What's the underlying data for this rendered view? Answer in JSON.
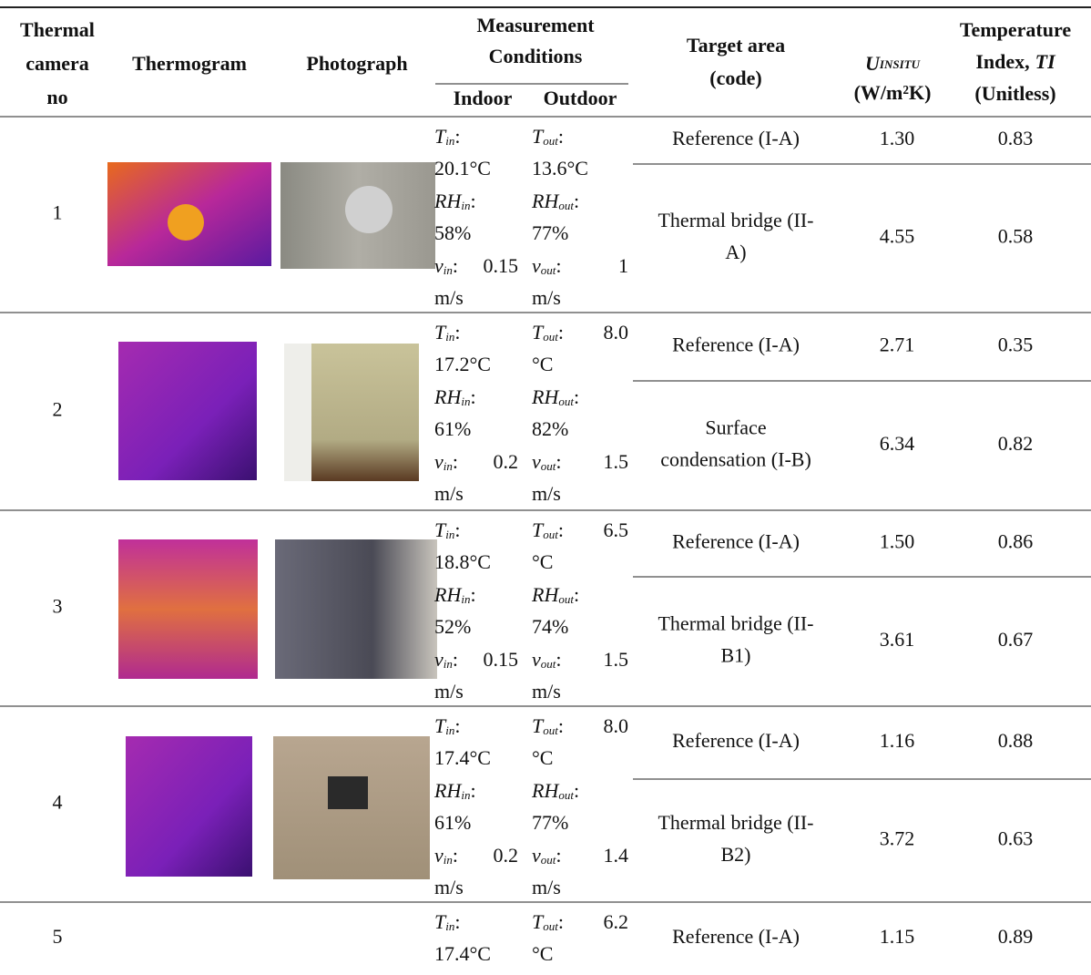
{
  "table": {
    "header": {
      "camera": [
        "Thermal",
        "camera",
        "no"
      ],
      "thermogram": "Thermogram",
      "photograph": "Photograph",
      "conditions": [
        "Measurement",
        "Conditions"
      ],
      "indoor": "Indoor",
      "outdoor": "Outdoor",
      "target": [
        "Target area",
        "(code)"
      ],
      "u": {
        "symbol": "U",
        "sub": "INSITU",
        "unit": "(W/m²K)"
      },
      "ti": {
        "line1": "Temperature",
        "line2": "Index,",
        "em": "TI",
        "line3": "(Unitless)"
      }
    },
    "rows": [
      {
        "no": "1",
        "indoor": [
          {
            "symbol": "T",
            "sub": "in",
            "punct": ":",
            "next": "20.1°C"
          },
          {
            "symbol": "RH",
            "sub": "in",
            "punct": ":",
            "next": "58%"
          },
          {
            "symbol": "v",
            "sub": "in",
            "punct": ":",
            "tail": "0.15",
            "next": "m/s"
          }
        ],
        "outdoor": [
          {
            "symbol": "T",
            "sub": "out",
            "punct": ":",
            "next": "13.6°C"
          },
          {
            "symbol": "RH",
            "sub": "out",
            "punct": ":",
            "next": "77%"
          },
          {
            "symbol": "v",
            "sub": "out",
            "punct": ":",
            "tail": "1",
            "next": "m/s"
          }
        ],
        "areas": [
          {
            "target": [
              "Reference (I-A)"
            ],
            "u": "1.30",
            "ti": "0.83"
          },
          {
            "target": [
              "Thermal bridge (II-",
              "A)"
            ],
            "u": "4.55",
            "ti": "0.58"
          }
        ]
      },
      {
        "no": "2",
        "indoor": [
          {
            "symbol": "T",
            "sub": "in",
            "punct": ":",
            "next": "17.2°C"
          },
          {
            "symbol": "RH",
            "sub": "in",
            "punct": ":",
            "next": "61%"
          },
          {
            "symbol": "v",
            "sub": "in",
            "punct": ":",
            "tail": "0.2",
            "next": "m/s"
          }
        ],
        "outdoor": [
          {
            "symbol": "T",
            "sub": "out",
            "punct": ":",
            "tail": "8.0",
            "next": "°C"
          },
          {
            "symbol": "RH",
            "sub": "out",
            "punct": ":",
            "next": "82%"
          },
          {
            "symbol": "v",
            "sub": "out",
            "punct": ":",
            "tail": "1.5",
            "next": "m/s"
          }
        ],
        "areas": [
          {
            "target": [
              "Reference (I-A)"
            ],
            "u": "2.71",
            "ti": "0.35"
          },
          {
            "target": [
              "Surface",
              "condensation (I-B)"
            ],
            "u": "6.34",
            "ti": "0.82"
          }
        ]
      },
      {
        "no": "3",
        "indoor": [
          {
            "symbol": "T",
            "sub": "in",
            "punct": ":",
            "next": "18.8°C"
          },
          {
            "symbol": "RH",
            "sub": "in",
            "punct": ":",
            "next": "52%"
          },
          {
            "symbol": "v",
            "sub": "in",
            "punct": ":",
            "tail": "0.15",
            "next": "m/s"
          }
        ],
        "outdoor": [
          {
            "symbol": "T",
            "sub": "out",
            "punct": ":",
            "tail": "6.5",
            "next": "°C"
          },
          {
            "symbol": "RH",
            "sub": "out",
            "punct": ":",
            "next": "74%"
          },
          {
            "symbol": "v",
            "sub": "out",
            "punct": ":",
            "tail": "1.5",
            "next": "m/s"
          }
        ],
        "areas": [
          {
            "target": [
              "Reference (I-A)"
            ],
            "u": "1.50",
            "ti": "0.86"
          },
          {
            "target": [
              "Thermal bridge (II-",
              "B1)"
            ],
            "u": "3.61",
            "ti": "0.67"
          }
        ]
      },
      {
        "no": "4",
        "indoor": [
          {
            "symbol": "T",
            "sub": "in",
            "punct": ":",
            "next": "17.4°C"
          },
          {
            "symbol": "RH",
            "sub": "in",
            "punct": ":",
            "next": "61%"
          },
          {
            "symbol": "v",
            "sub": "in",
            "punct": ":",
            "tail": "0.2",
            "next": "m/s"
          }
        ],
        "outdoor": [
          {
            "symbol": "T",
            "sub": "out",
            "punct": ":",
            "tail": "8.0",
            "next": "°C"
          },
          {
            "symbol": "RH",
            "sub": "out",
            "punct": ":",
            "next": "77%"
          },
          {
            "symbol": "v",
            "sub": "out",
            "punct": ":",
            "tail": "1.4",
            "next": "m/s"
          }
        ],
        "areas": [
          {
            "target": [
              "Reference (I-A)"
            ],
            "u": "1.16",
            "ti": "0.88"
          },
          {
            "target": [
              "Thermal bridge (II-",
              "B2)"
            ],
            "u": "3.72",
            "ti": "0.63"
          }
        ]
      },
      {
        "no": "5",
        "indoor": [
          {
            "symbol": "T",
            "sub": "in",
            "punct": ":",
            "next": "17.4°C"
          }
        ],
        "outdoor": [
          {
            "symbol": "T",
            "sub": "out",
            "punct": ":",
            "tail": "6.2",
            "next": "°C"
          }
        ],
        "areas": [
          {
            "target": [
              "Reference (I-A)"
            ],
            "u": "1.15",
            "ti": "0.89"
          }
        ]
      }
    ]
  }
}
